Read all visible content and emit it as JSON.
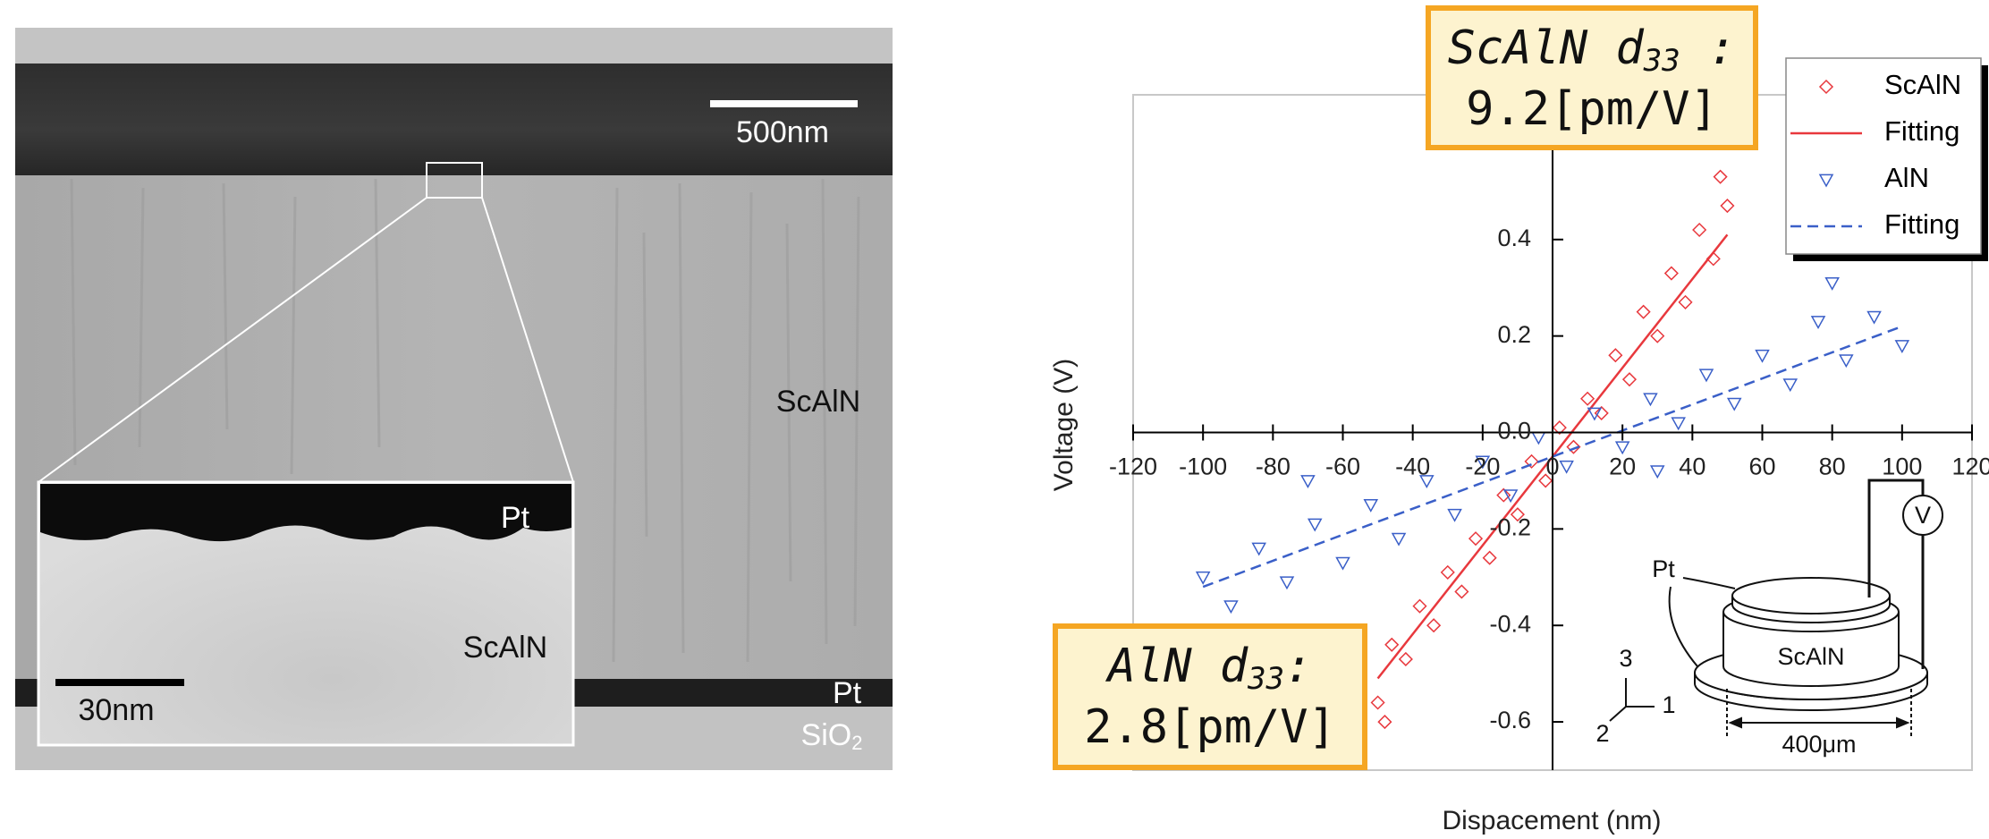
{
  "image": {
    "scale_bar": "500nm",
    "layer_main": "ScAlN",
    "layer_pt": "Pt",
    "layer_sio2": {
      "base": "SiO",
      "sub": "2"
    },
    "inset": {
      "pt": "Pt",
      "scaln": "ScAlN",
      "scale_bar": "30nm"
    }
  },
  "chart_data": {
    "type": "scatter",
    "x_label": "Dispacement (nm)",
    "y_label": "Voltage (V)",
    "xlim": [
      -120,
      120
    ],
    "xticks": [
      -120,
      -100,
      -80,
      -60,
      -40,
      -20,
      0,
      20,
      40,
      60,
      80,
      100,
      120
    ],
    "ylim": [
      -0.7,
      0.7
    ],
    "yticks": [
      -0.6,
      -0.4,
      -0.2,
      {
        "value": 0,
        "label": "0.0"
      },
      0.2,
      0.4
    ],
    "legend": "upper right",
    "series": [
      {
        "name": "ScAlN",
        "color": "#e8383d",
        "marker": "diamond",
        "x": [
          -50,
          -48,
          -46,
          -42,
          -38,
          -34,
          -30,
          -26,
          -22,
          -18,
          -14,
          -10,
          -6,
          -2,
          2,
          6,
          10,
          14,
          18,
          22,
          26,
          30,
          34,
          38,
          42,
          46,
          48,
          50
        ],
        "values": [
          -0.56,
          -0.6,
          -0.44,
          -0.47,
          -0.36,
          -0.4,
          -0.29,
          -0.33,
          -0.22,
          -0.26,
          -0.13,
          -0.17,
          -0.06,
          -0.1,
          0.01,
          -0.03,
          0.07,
          0.04,
          0.16,
          0.11,
          0.25,
          0.2,
          0.33,
          0.27,
          0.42,
          0.36,
          0.53,
          0.47
        ]
      },
      {
        "name": "Fitting",
        "color": "#e8383d",
        "line_style": "solid",
        "x": [
          -50,
          50
        ],
        "values": [
          -0.51,
          0.41
        ]
      },
      {
        "name": "AlN",
        "color": "#3a5fc8",
        "marker": "triangle-down",
        "x": [
          -100,
          -92,
          -84,
          -76,
          -70,
          -68,
          -60,
          -52,
          -44,
          -36,
          -28,
          -20,
          -12,
          -4,
          4,
          12,
          20,
          28,
          30,
          36,
          44,
          52,
          60,
          68,
          76,
          80,
          84,
          92,
          100
        ],
        "values": [
          -0.3,
          -0.36,
          -0.24,
          -0.31,
          -0.1,
          -0.19,
          -0.27,
          -0.15,
          -0.22,
          -0.1,
          -0.17,
          -0.06,
          -0.13,
          -0.01,
          -0.07,
          0.04,
          -0.03,
          0.07,
          -0.08,
          0.02,
          0.12,
          0.06,
          0.16,
          0.1,
          0.23,
          0.31,
          0.15,
          0.24,
          0.18
        ]
      },
      {
        "name": "Fitting",
        "color": "#3a5fc8",
        "line_style": "dashed",
        "x": [
          -100,
          100
        ],
        "values": [
          -0.32,
          0.22
        ]
      }
    ],
    "annotations": [
      {
        "prefix": "ScAlN d",
        "sub": "33",
        "suffix": " :",
        "value": "9.2[pm/V]"
      },
      {
        "prefix": "AlN d",
        "sub": "33",
        "suffix": ":",
        "value": "2.8[pm/V]"
      }
    ],
    "diagram": {
      "electrode": "Pt",
      "film": "ScAlN",
      "width": "400μm",
      "axis_1": "1",
      "axis_2": "2",
      "axis_3": "3",
      "meter": "V"
    }
  }
}
